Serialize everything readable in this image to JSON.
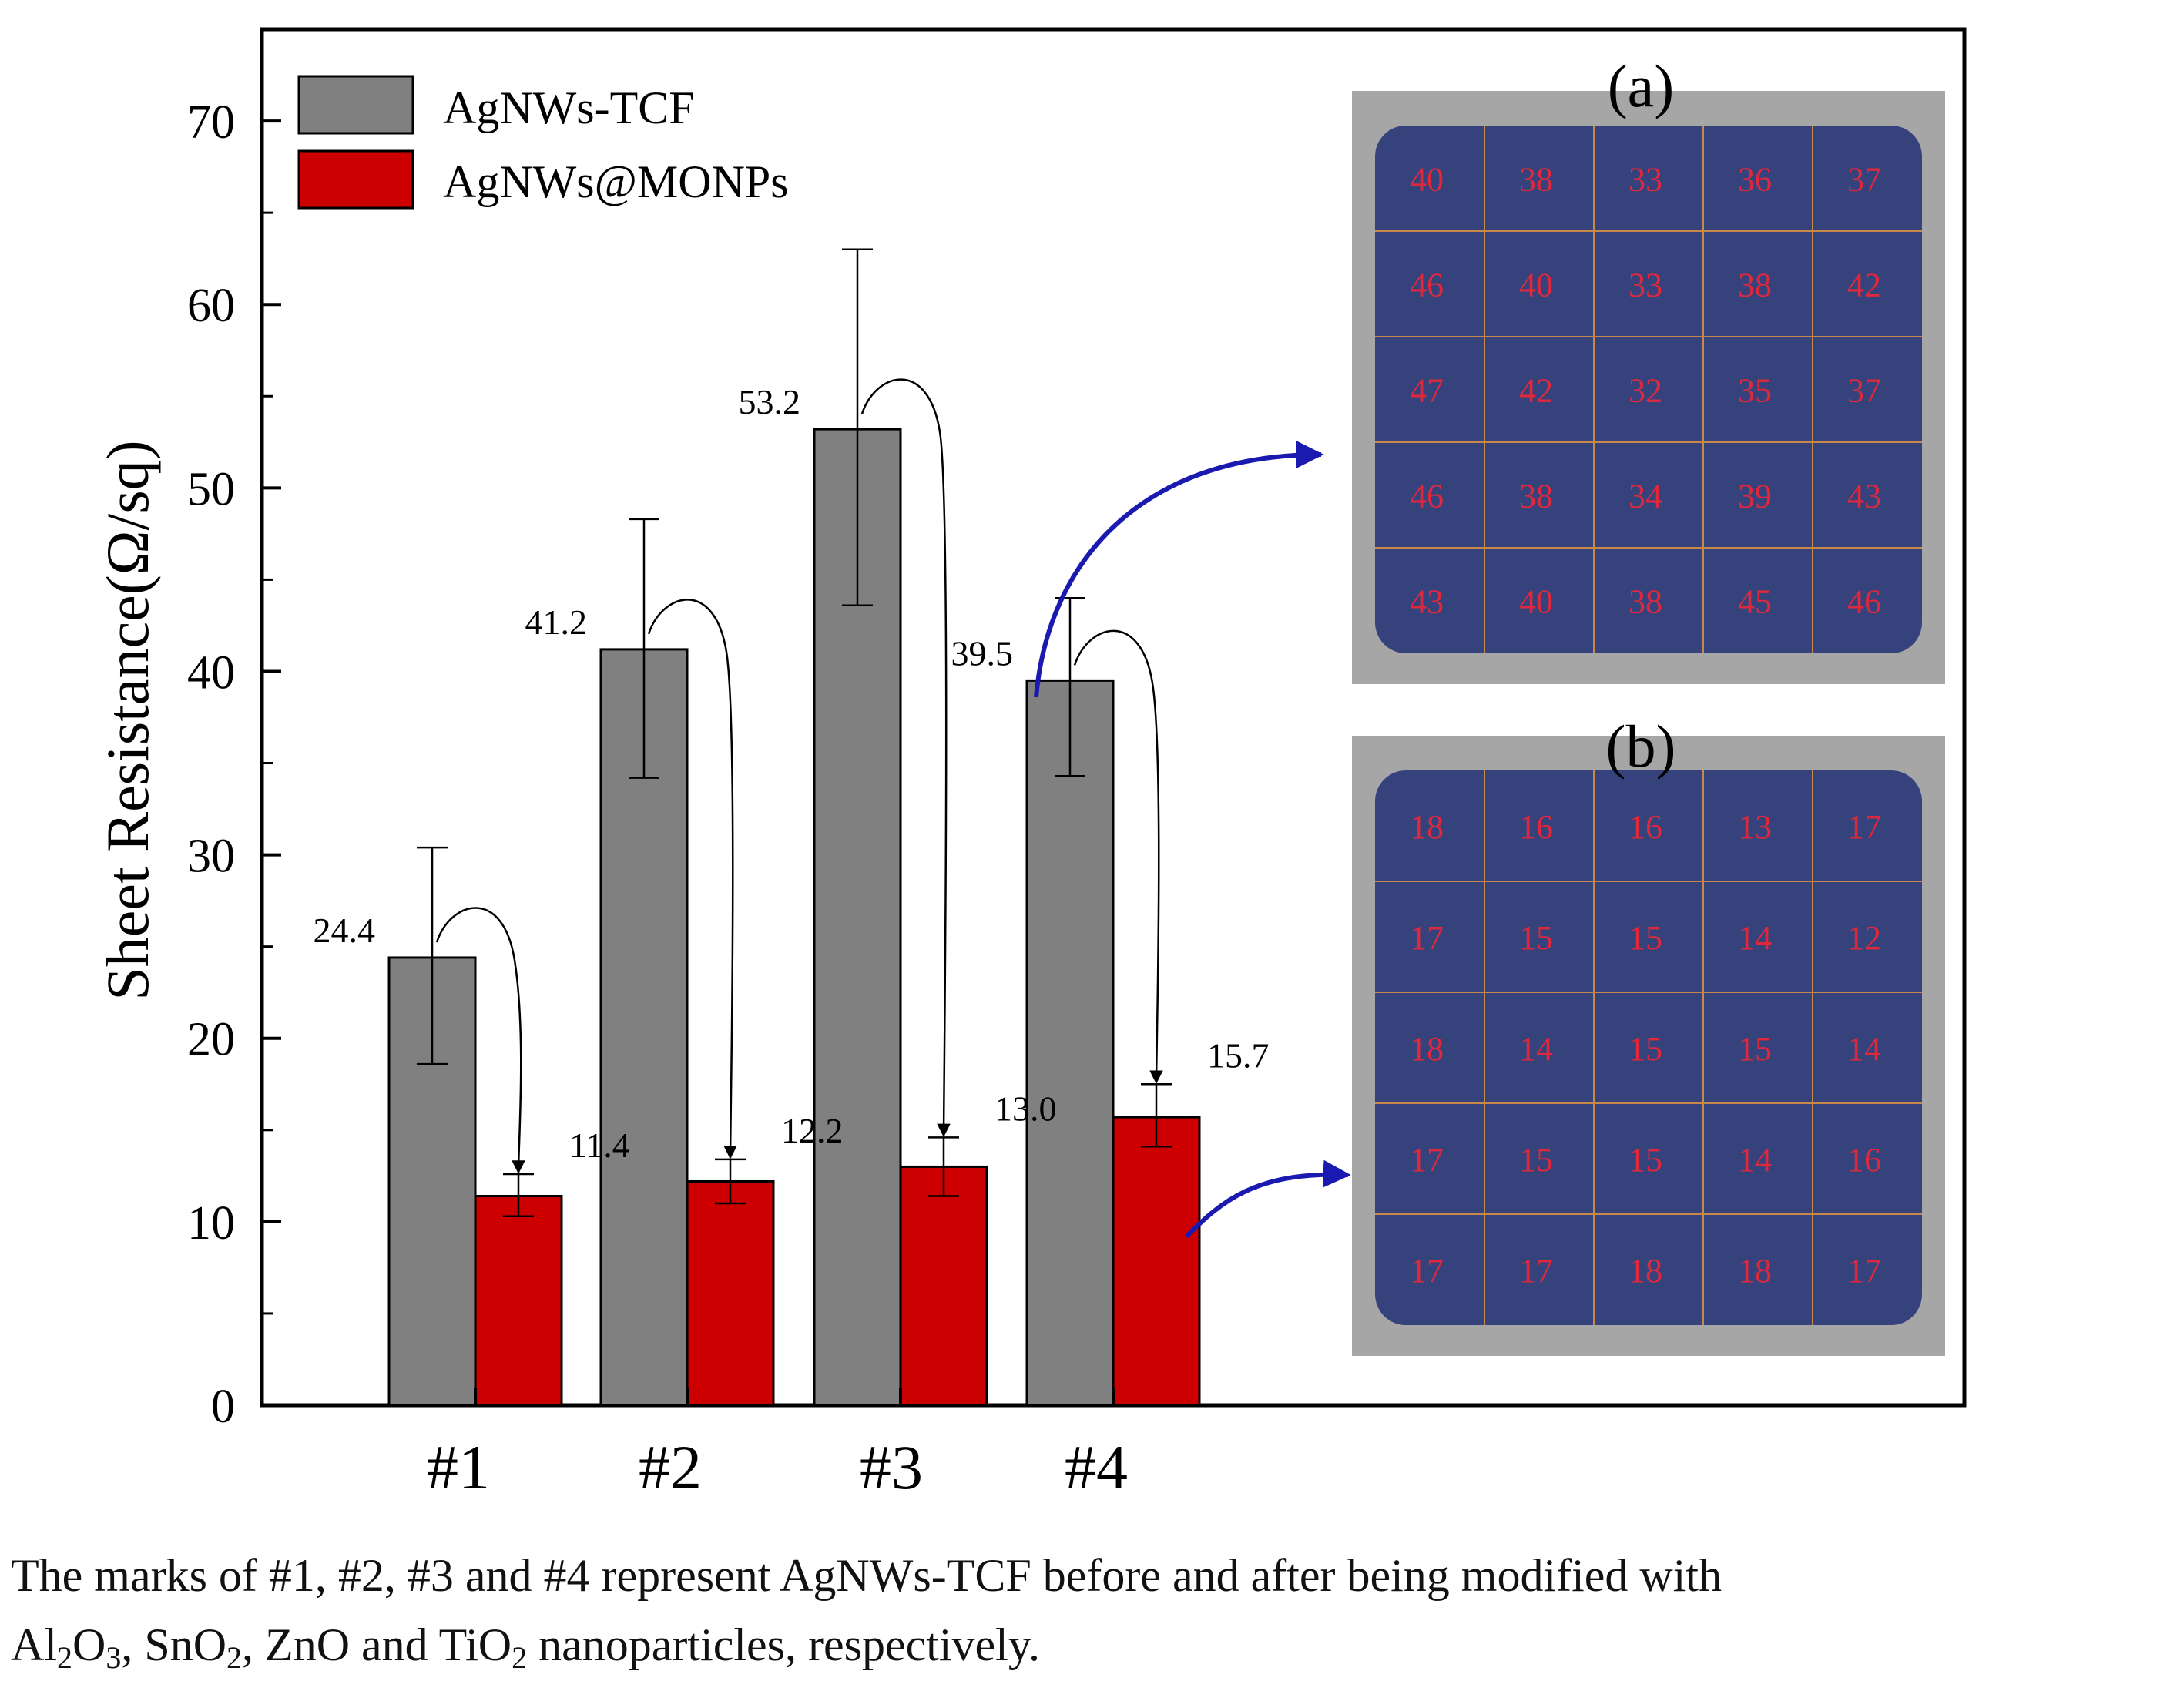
{
  "chart_data": {
    "type": "bar",
    "title": "",
    "xlabel": "",
    "ylabel": "Sheet Resistance(Ω/sq)",
    "ylim": [
      0,
      75
    ],
    "yticks": [
      0,
      10,
      20,
      30,
      40,
      50,
      60,
      70
    ],
    "categories": [
      "#1",
      "#2",
      "#3",
      "#4"
    ],
    "series": [
      {
        "name": "AgNWs-TCF",
        "color": "#808080",
        "values": [
          24.4,
          41.2,
          53.2,
          39.5
        ],
        "labels": [
          "24.4",
          "41.2",
          "53.2",
          "39.5"
        ],
        "error": [
          [
            18.6,
            30.4
          ],
          [
            34.2,
            48.3
          ],
          [
            43.6,
            63.0
          ],
          [
            34.3,
            44.0
          ]
        ]
      },
      {
        "name": "AgNWs@MONPs",
        "color": "#cc0000",
        "values": [
          11.4,
          12.2,
          13.0,
          15.7
        ],
        "labels": [
          "11.4",
          "12.2",
          "13.0",
          "15.7"
        ],
        "error": [
          [
            10.3,
            12.6
          ],
          [
            11.0,
            13.4
          ],
          [
            11.4,
            14.6
          ],
          [
            14.1,
            17.5
          ]
        ]
      }
    ]
  },
  "panels": [
    {
      "label": "(a)",
      "grid": [
        [
          "40",
          "38",
          "33",
          "36",
          "37"
        ],
        [
          "46",
          "40",
          "33",
          "38",
          "42"
        ],
        [
          "47",
          "42",
          "32",
          "35",
          "37"
        ],
        [
          "46",
          "38",
          "34",
          "39",
          "43"
        ],
        [
          "43",
          "40",
          "38",
          "45",
          "46"
        ]
      ]
    },
    {
      "label": "(b)",
      "grid": [
        [
          "18",
          "16",
          "16",
          "13",
          "17"
        ],
        [
          "17",
          "15",
          "15",
          "14",
          "12"
        ],
        [
          "18",
          "14",
          "15",
          "15",
          "14"
        ],
        [
          "17",
          "15",
          "15",
          "14",
          "16"
        ],
        [
          "17",
          "17",
          "18",
          "18",
          "17"
        ]
      ]
    }
  ],
  "caption": {
    "line1": "The marks of #1, #2, #3 and #4 represent AgNWs-TCF before and after being modified with",
    "line2_parts": [
      "Al",
      "2",
      "O",
      "3",
      ", SnO",
      "2",
      ", ZnO and TiO",
      "2",
      " nanoparticles, respectively."
    ]
  },
  "colors": {
    "panel_bg": "#35427c",
    "panel_frame": "#a6a6a6",
    "grid_line": "#c8884a",
    "cell_text": "#e0283c",
    "arrow_blue": "#1a1ab0"
  }
}
